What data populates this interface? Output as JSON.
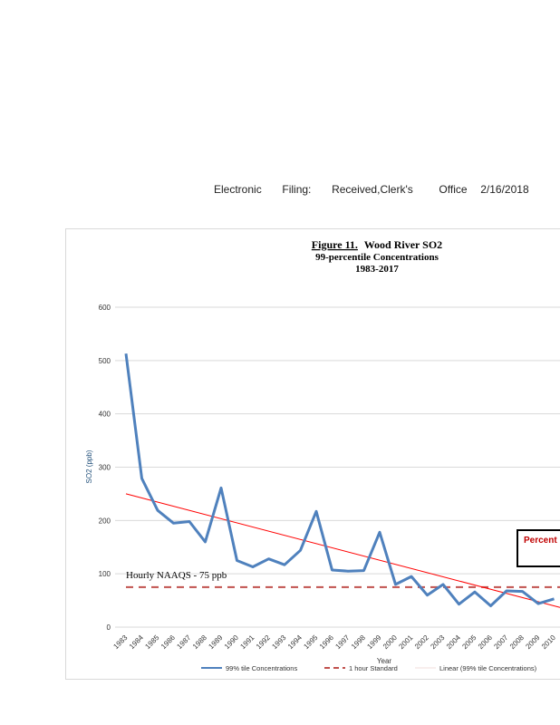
{
  "header": {
    "electronic": "Electronic",
    "filing": "Filing:",
    "received": "Received,Clerk's",
    "office": "Office",
    "date": "2/16/2018"
  },
  "chart_data": {
    "type": "line",
    "title_prefix": "Figure 11.",
    "title_rest": "Wood River SO2",
    "subtitle": "99-percentile Concentrations",
    "years_label": "1983-2017",
    "xlabel": "Year",
    "ylabel": "SO2 (ppb)",
    "ylim": [
      0,
      600
    ],
    "yticks": [
      0,
      100,
      200,
      300,
      400,
      500,
      600
    ],
    "grid": true,
    "x": [
      "1983",
      "1984",
      "1985",
      "1986",
      "1987",
      "1988",
      "1989",
      "1990",
      "1991",
      "1992",
      "1993",
      "1994",
      "1995",
      "1996",
      "1997",
      "1998",
      "1999",
      "2000",
      "2001",
      "2002",
      "2003",
      "2004",
      "2005",
      "2006",
      "2007",
      "2008",
      "2009",
      "2010"
    ],
    "series": [
      {
        "name": "99% tile Concentrations",
        "color": "#4f81bd",
        "values": [
          513,
          279,
          219,
          195,
          198,
          160,
          261,
          125,
          113,
          128,
          117,
          144,
          217,
          107,
          105,
          106,
          178,
          80,
          95,
          60,
          80,
          43,
          66,
          40,
          68,
          67,
          44,
          53
        ]
      }
    ],
    "standard": {
      "name": "1 hour Standard",
      "value": 75,
      "color": "#c0504d"
    },
    "trend": {
      "name": "Linear (99% tile Concentrations)",
      "color": "#ff0000",
      "start": 250,
      "end": 37
    },
    "standard_annotation": "Hourly NAAQS - 75 ppb",
    "box_label": "Percent",
    "legend_position": "bottom"
  }
}
